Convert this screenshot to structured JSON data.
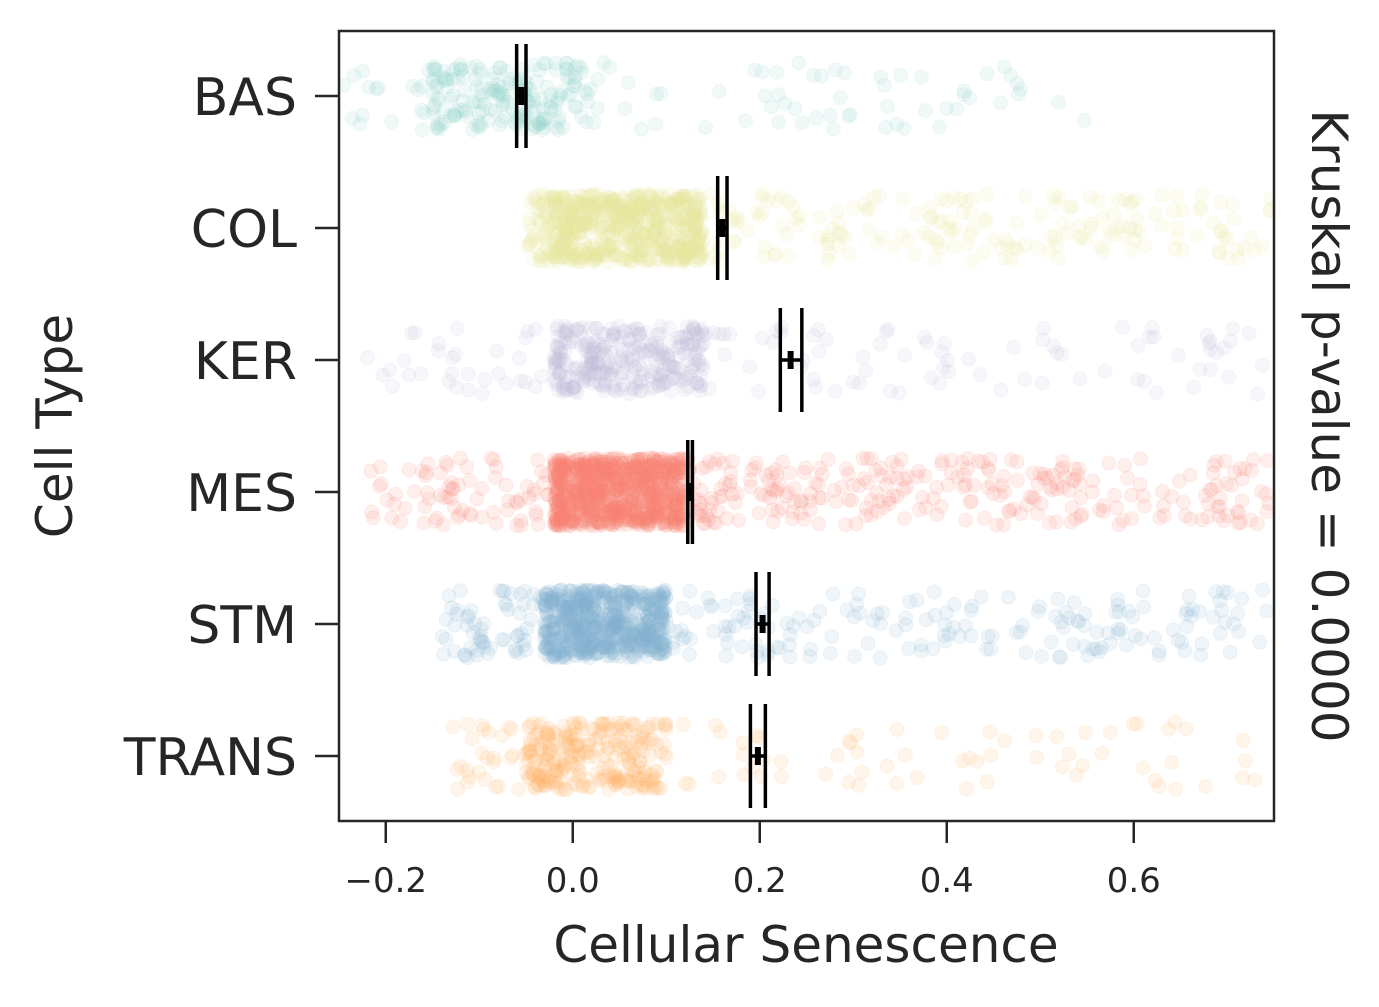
{
  "chart_data": {
    "type": "strip",
    "title": "",
    "xlabel": "Cellular Senescence",
    "ylabel": "Cell Type",
    "right_annotation": "Kruskal p-value = 0.0000",
    "xlim": [
      -0.25,
      0.75
    ],
    "xticks": [
      -0.2,
      0.0,
      0.2,
      0.4,
      0.6
    ],
    "xtick_labels": [
      "−0.2",
      "0.0",
      "0.2",
      "0.4",
      "0.6"
    ],
    "categories": [
      "BAS",
      "COL",
      "KER",
      "MES",
      "STM",
      "TRANS"
    ],
    "series": [
      {
        "name": "BAS",
        "color": "#8dd3c7",
        "mean": -0.055,
        "ci": [
          -0.06,
          -0.05
        ],
        "n_points": 260,
        "spread": {
          "min": -0.25,
          "core_low": -0.15,
          "core_high": 0.02,
          "max": 0.55
        }
      },
      {
        "name": "COL",
        "color": "#e8ea9a",
        "mean": 0.16,
        "ci": [
          0.155,
          0.165
        ],
        "n_points": 900,
        "spread": {
          "min": -0.05,
          "core_low": -0.02,
          "core_high": 0.14,
          "max": 0.75
        }
      },
      {
        "name": "KER",
        "color": "#bebada",
        "mean": 0.233,
        "ci": [
          0.222,
          0.245
        ],
        "n_points": 420,
        "spread": {
          "min": -0.22,
          "core_low": -0.02,
          "core_high": 0.14,
          "max": 0.75
        }
      },
      {
        "name": "MES",
        "color": "#fb8072",
        "mean": 0.125,
        "ci": [
          0.123,
          0.128
        ],
        "n_points": 1300,
        "spread": {
          "min": -0.22,
          "core_low": -0.02,
          "core_high": 0.12,
          "max": 0.75
        }
      },
      {
        "name": "STM",
        "color": "#80b1d3",
        "mean": 0.203,
        "ci": [
          0.196,
          0.21
        ],
        "n_points": 900,
        "spread": {
          "min": -0.14,
          "core_low": -0.03,
          "core_high": 0.1,
          "max": 0.75
        }
      },
      {
        "name": "TRANS",
        "color": "#fdb462",
        "mean": 0.198,
        "ci": [
          0.19,
          0.206
        ],
        "n_points": 360,
        "spread": {
          "min": -0.13,
          "core_low": -0.05,
          "core_high": 0.1,
          "max": 0.73
        }
      }
    ]
  }
}
